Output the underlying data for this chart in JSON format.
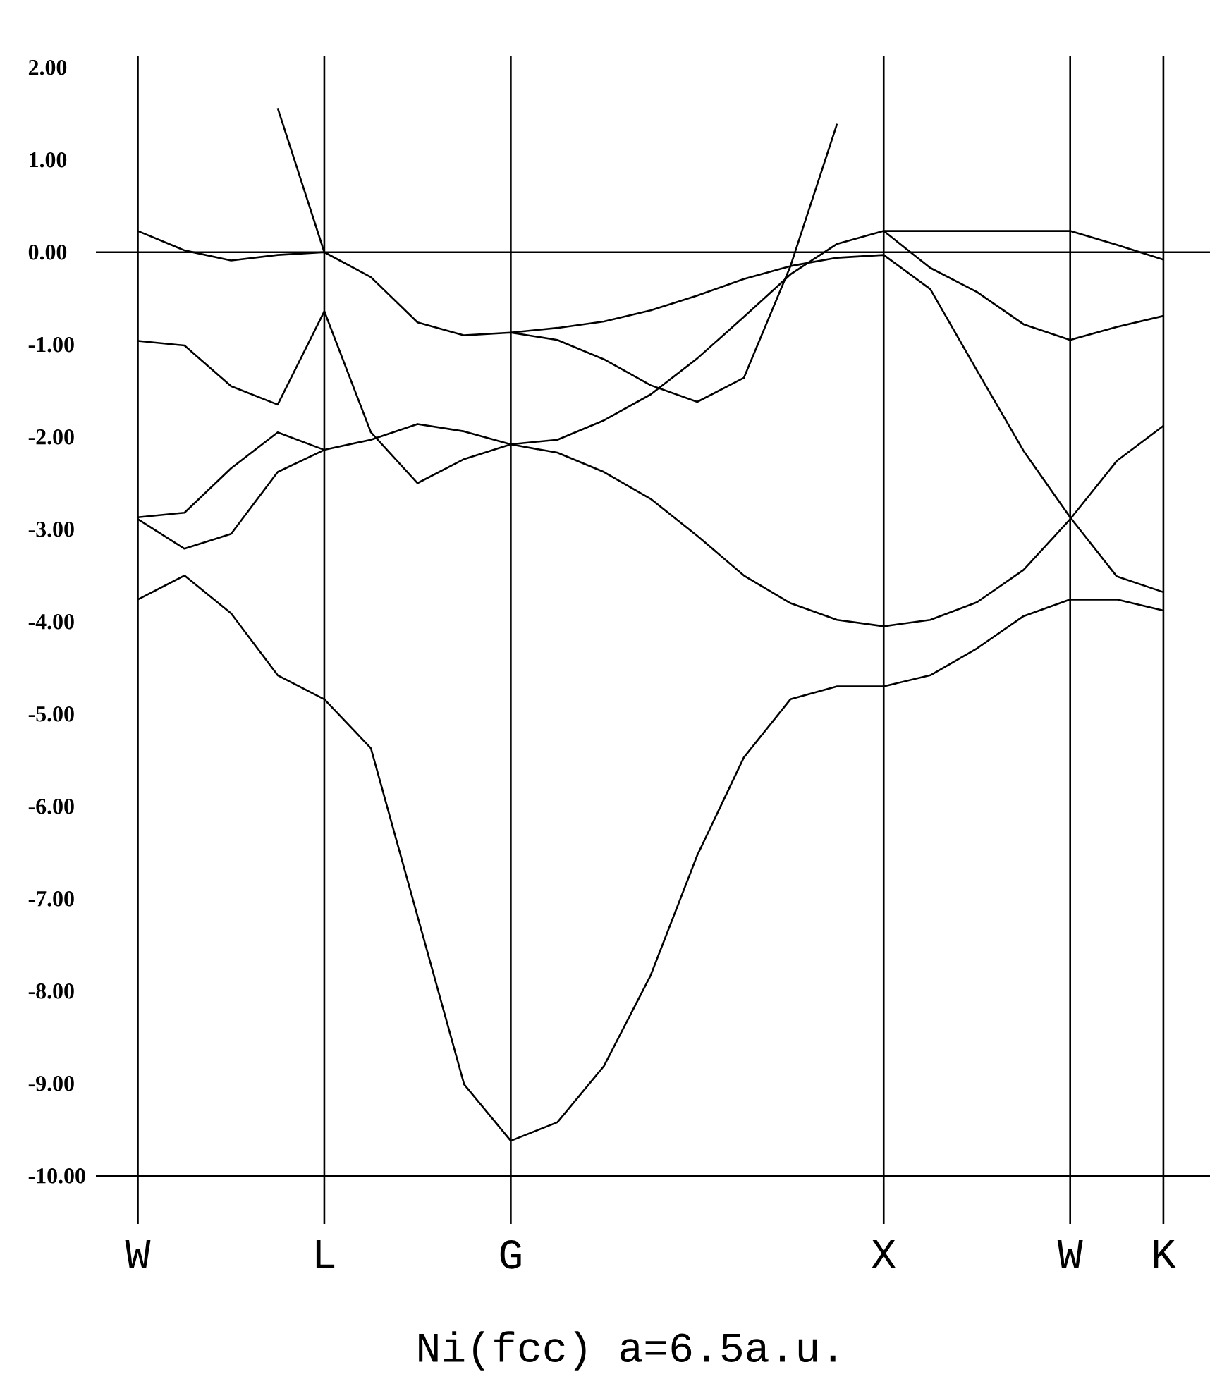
{
  "chart_data": {
    "type": "line",
    "xlabel": "Ni(fcc)  a=6.5a.u.",
    "categories": [
      "W",
      null,
      null,
      null,
      "L",
      null,
      null,
      null,
      "G",
      null,
      null,
      null,
      null,
      null,
      null,
      null,
      "X",
      null,
      null,
      null,
      "W",
      null,
      "K"
    ],
    "ylim": [
      -10.52,
      2.12
    ],
    "yticks": [
      {
        "value": 2,
        "label": "2.00"
      },
      {
        "value": 1,
        "label": "1.00"
      },
      {
        "value": 0,
        "label": "0.00"
      },
      {
        "value": -1,
        "label": "-1.00"
      },
      {
        "value": -2,
        "label": "-2.00"
      },
      {
        "value": -3,
        "label": "-3.00"
      },
      {
        "value": -4,
        "label": "-4.00"
      },
      {
        "value": -5,
        "label": "-5.00"
      },
      {
        "value": -6,
        "label": "-6.00"
      },
      {
        "value": -7,
        "label": "-7.00"
      },
      {
        "value": -8,
        "label": "-8.00"
      },
      {
        "value": -9,
        "label": "-9.00"
      },
      {
        "value": -10,
        "label": "-10.00"
      }
    ],
    "grid": "x",
    "ref_lines": [
      {
        "axis": "y",
        "value": 0
      },
      {
        "axis": "y",
        "value": -10
      }
    ],
    "series": [
      {
        "color": "#000000",
        "values": [
          -3.76,
          -3.5,
          -3.91,
          -4.58,
          -4.84,
          -5.37,
          -7.19,
          -9.01,
          -9.62,
          -9.42,
          -8.81,
          -7.83,
          -6.53,
          -5.47,
          -4.84,
          -4.7,
          -4.7,
          -4.58,
          -4.29,
          -3.94,
          -3.76,
          -3.76,
          -3.88
        ]
      },
      {
        "color": "#000000",
        "values": [
          -2.89,
          -3.21,
          -3.05,
          -2.38,
          -2.14,
          -2.03,
          -1.86,
          -1.94,
          -2.08,
          -2.17,
          -2.38,
          -2.67,
          -3.07,
          -3.5,
          -3.8,
          -3.98,
          -4.05,
          -3.98,
          -3.79,
          -3.44,
          -2.89,
          -2.26,
          -1.88
        ]
      },
      {
        "color": "#000000",
        "values": [
          -2.87,
          -2.82,
          -2.34,
          -1.95,
          -2.14,
          null,
          null,
          null,
          null,
          null,
          null,
          null,
          null,
          null,
          null,
          null,
          null,
          null,
          null,
          null,
          null,
          null,
          null
        ]
      },
      {
        "color": "#000000",
        "values": [
          -0.96,
          -1.01,
          -1.45,
          -1.65,
          -0.64,
          -1.95,
          -2.5,
          -2.24,
          -2.08,
          -2.03,
          -1.82,
          -1.54,
          -1.15,
          -0.7,
          -0.24,
          0.09,
          0.23,
          0.23,
          0.23,
          0.23,
          0.23,
          0.08,
          -0.08
        ]
      },
      {
        "color": "#000000",
        "values": [
          0.23,
          0.02,
          -0.09,
          -0.03,
          0.0,
          -0.27,
          -0.76,
          -0.9,
          -0.87,
          -0.95,
          -1.16,
          -1.44,
          -1.62,
          -1.36,
          -0.15,
          -0.06,
          -0.03,
          -0.4,
          -1.28,
          -2.15,
          -2.87,
          -3.51,
          -3.68
        ]
      },
      {
        "color": "#000000",
        "values": [
          null,
          null,
          null,
          null,
          null,
          null,
          null,
          null,
          null,
          null,
          null,
          null,
          null,
          null,
          null,
          null,
          0.23,
          -0.17,
          -0.43,
          -0.78,
          -0.95,
          -0.81,
          -0.69
        ]
      },
      {
        "color": "#000000",
        "values": [
          null,
          null,
          null,
          1.56,
          0.0,
          null,
          null,
          null,
          null,
          null,
          null,
          null,
          null,
          null,
          null,
          null,
          null,
          null,
          null,
          null,
          null,
          null,
          null
        ]
      },
      {
        "color": "#000000",
        "values": [
          null,
          null,
          null,
          null,
          null,
          null,
          null,
          null,
          -0.87,
          -0.82,
          -0.75,
          -0.63,
          -0.47,
          -0.29,
          -0.15,
          1.39,
          null,
          null,
          null,
          null,
          null,
          null,
          null
        ]
      }
    ]
  }
}
